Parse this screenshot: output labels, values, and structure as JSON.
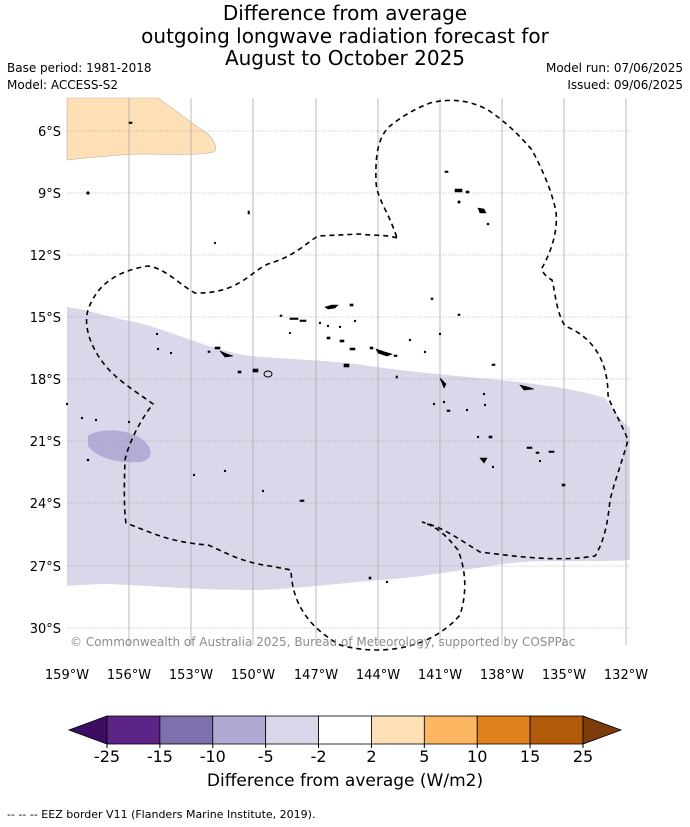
{
  "title": {
    "line1": "Difference from average",
    "line2": "outgoing longwave radiation forecast for",
    "line3": "August to October 2025"
  },
  "meta": {
    "base_period": "Base period: 1981-2018",
    "model": "Model: ACCESS-S2",
    "model_run": "Model run: 07/06/2025",
    "issued": "Issued: 09/06/2025"
  },
  "map": {
    "lat_labels": [
      "6°S",
      "9°S",
      "12°S",
      "15°S",
      "18°S",
      "21°S",
      "24°S",
      "27°S",
      "30°S"
    ],
    "lon_labels": [
      "159°W",
      "156°W",
      "153°W",
      "150°W",
      "147°W",
      "144°W",
      "141°W",
      "138°W",
      "135°W",
      "132°W"
    ],
    "copyright": "© Commonwealth of Australia 2025, Bureau of Meteorology, supported by COSPPac",
    "regions": [
      {
        "category": "2 to 5",
        "color": "#fde0b6"
      },
      {
        "category": "-5 to -2",
        "color": "#d8d8ea"
      },
      {
        "category": "-10 to -5",
        "color": "#b3acd5"
      }
    ]
  },
  "colorbar": {
    "tick_labels": [
      "-25",
      "-15",
      "-10",
      "-5",
      "-2",
      "2",
      "5",
      "10",
      "15",
      "25"
    ],
    "colors": [
      "#5c2486",
      "#7f6fac",
      "#b0a9d3",
      "#d8d8ea",
      "#ffffff",
      "#fde0b6",
      "#fdb662",
      "#e0821b",
      "#b05a0a"
    ],
    "under_color": "#3d0c63",
    "over_color": "#7e3b0a",
    "label": "Difference from average (W/m2)"
  },
  "footer": "--  --  -- EEZ border V11 (Flanders Marine Institute, 2019)."
}
